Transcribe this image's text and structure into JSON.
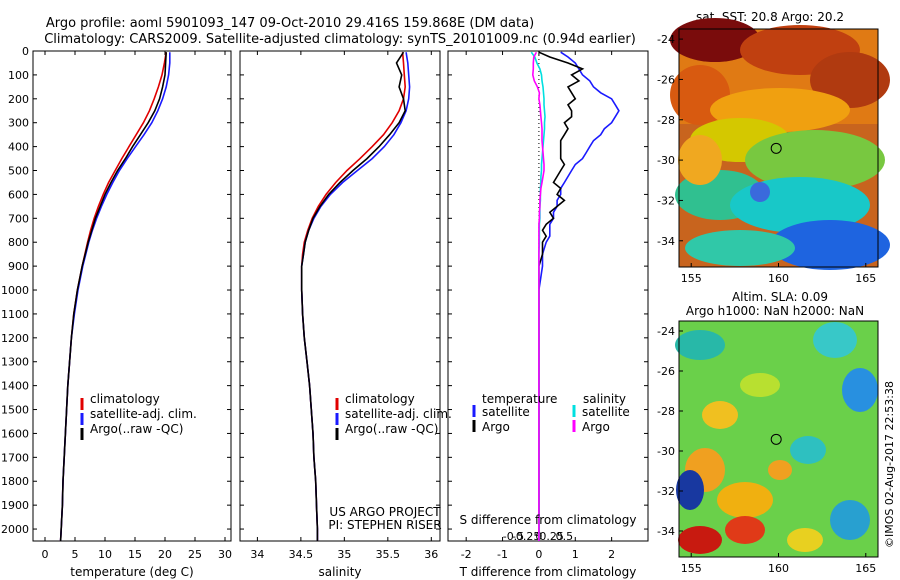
{
  "figure": {
    "title_line1": "Argo profile: aoml 5901093_147 09-Oct-2010 29.416S 159.868E (DM data)",
    "title_line2": "Climatology: CARS2009. Satellite-adjusted climatology: synTS_20101009.nc (0.94d earlier)",
    "project_line1": "US ARGO PROJECT",
    "project_line2": "PI: STEPHEN RISER",
    "stamp": "©IMOS 02-Aug-2017 22:53:38"
  },
  "colors": {
    "climatology": "#e00000",
    "satellite": "#1a1aff",
    "argo": "#000000",
    "argo_salinity_diff": "#ff00ff",
    "satellite_salinity_diff": "#00e0e0"
  },
  "chart_data": [
    {
      "type": "line",
      "name": "temperature",
      "xlabel": "temperature (deg C)",
      "ylim": [
        2050,
        0
      ],
      "xlim": [
        -2,
        31
      ],
      "xticks": [
        "0",
        "5",
        "10",
        "15",
        "20",
        "25",
        "30"
      ],
      "yticks": [
        "0",
        "100",
        "200",
        "300",
        "400",
        "500",
        "600",
        "700",
        "800",
        "900",
        "1000",
        "1100",
        "1200",
        "1300",
        "1400",
        "1500",
        "1600",
        "1700",
        "1800",
        "1900",
        "2000"
      ],
      "legend": [
        "climatology",
        "satellite-adj. clim.",
        "Argo(..raw -QC)"
      ],
      "depth": [
        5,
        50,
        100,
        150,
        200,
        250,
        300,
        350,
        400,
        450,
        500,
        550,
        600,
        650,
        700,
        750,
        800,
        900,
        1000,
        1100,
        1200,
        1300,
        1400,
        1500,
        1600,
        1700,
        1800,
        1900,
        2000,
        2050
      ],
      "series": [
        {
          "name": "climatology",
          "values": [
            20.2,
            19.9,
            19.5,
            18.9,
            18.2,
            17.4,
            16.4,
            15.2,
            14.0,
            12.8,
            11.7,
            10.6,
            9.7,
            8.9,
            8.2,
            7.6,
            7.1,
            6.2,
            5.4,
            4.8,
            4.4,
            4.1,
            3.8,
            3.6,
            3.4,
            3.2,
            3.0,
            2.9,
            2.7,
            2.6
          ]
        },
        {
          "name": "satellite-adj. clim.",
          "values": [
            20.8,
            20.8,
            20.6,
            20.2,
            19.6,
            18.8,
            17.8,
            16.5,
            15.1,
            13.7,
            12.4,
            11.3,
            10.3,
            9.4,
            8.6,
            7.9,
            7.3,
            6.3,
            5.5,
            4.9,
            4.4,
            4.1,
            3.8,
            3.6,
            3.4,
            3.2,
            3.0,
            2.9,
            2.7,
            2.6
          ]
        },
        {
          "name": "Argo(..raw -QC)",
          "values": [
            20.2,
            20.1,
            20.0,
            19.6,
            19.1,
            18.3,
            17.2,
            15.9,
            14.6,
            13.4,
            12.1,
            11.0,
            10.0,
            9.2,
            8.4,
            7.8,
            7.2,
            6.2,
            5.4,
            4.8,
            4.4,
            4.1,
            3.8,
            3.6,
            3.4,
            3.2,
            3.0,
            2.9,
            2.7,
            2.6
          ]
        }
      ]
    },
    {
      "type": "line",
      "name": "salinity",
      "xlabel": "salinity",
      "ylim": [
        2050,
        0
      ],
      "xlim": [
        33.8,
        36.1
      ],
      "xticks": [
        "34",
        "34.5",
        "35",
        "35.5",
        "36"
      ],
      "legend": [
        "climatology",
        "satellite-adj. clim.",
        "Argo(..raw -QC)"
      ],
      "depth": [
        5,
        50,
        100,
        150,
        200,
        250,
        300,
        350,
        400,
        450,
        500,
        550,
        600,
        650,
        700,
        750,
        800,
        850,
        900,
        950,
        1000,
        1100,
        1200,
        1300,
        1400,
        1500,
        1600,
        1700,
        1800,
        1900,
        2000,
        2050
      ],
      "series": [
        {
          "name": "climatology",
          "values": [
            35.67,
            35.68,
            35.69,
            35.7,
            35.68,
            35.63,
            35.55,
            35.45,
            35.32,
            35.18,
            35.03,
            34.9,
            34.79,
            34.7,
            34.63,
            34.58,
            34.54,
            34.52,
            34.51,
            34.51,
            34.51,
            34.52,
            34.54,
            34.57,
            34.6,
            34.62,
            34.64,
            34.65,
            34.67,
            34.68,
            34.69,
            34.69
          ]
        },
        {
          "name": "satellite-adj. clim.",
          "values": [
            35.71,
            35.73,
            35.74,
            35.75,
            35.74,
            35.71,
            35.65,
            35.57,
            35.46,
            35.32,
            35.15,
            34.98,
            34.84,
            34.73,
            34.65,
            34.59,
            34.55,
            34.53,
            34.51,
            34.51,
            34.51,
            34.52,
            34.54,
            34.57,
            34.6,
            34.62,
            34.64,
            34.65,
            34.67,
            34.68,
            34.69,
            34.69
          ]
        },
        {
          "name": "Argo(..raw -QC)",
          "values": [
            35.68,
            35.6,
            35.66,
            35.63,
            35.68,
            35.7,
            35.63,
            35.52,
            35.4,
            35.26,
            35.1,
            34.95,
            34.82,
            34.72,
            34.64,
            34.59,
            34.55,
            34.53,
            34.51,
            34.51,
            34.51,
            34.52,
            34.54,
            34.57,
            34.6,
            34.62,
            34.64,
            34.65,
            34.67,
            34.68,
            34.69,
            34.69
          ]
        }
      ]
    },
    {
      "type": "line",
      "name": "difference from climatology",
      "xlabel_top": "S difference from climatology",
      "xlabel": "T difference from climatology",
      "ylim": [
        2050,
        0
      ],
      "xlim": [
        -2.5,
        3
      ],
      "xticks_T": [
        "-2",
        "-1",
        "0",
        "1",
        "2"
      ],
      "xticks_S": [
        "-0.5",
        "-0.25",
        "0",
        "0.25",
        "0.5"
      ],
      "legend_titles": [
        "temperature",
        "salinity"
      ],
      "legend": [
        "satellite",
        "Argo",
        "satellite",
        "Argo"
      ],
      "depth": [
        5,
        25,
        50,
        75,
        100,
        125,
        150,
        175,
        200,
        225,
        250,
        275,
        300,
        325,
        350,
        375,
        400,
        425,
        450,
        475,
        500,
        525,
        550,
        575,
        600,
        625,
        650,
        675,
        700,
        725,
        750,
        775,
        800,
        850,
        900,
        950,
        1000,
        1200,
        1400,
        1600,
        1800,
        2000,
        2050
      ],
      "series": [
        {
          "name": "T satellite",
          "values": [
            0.6,
            0.8,
            1.0,
            1.1,
            1.2,
            1.4,
            1.5,
            1.7,
            2.0,
            2.1,
            2.2,
            2.1,
            2.0,
            1.8,
            1.7,
            1.5,
            1.4,
            1.3,
            1.2,
            1.0,
            0.9,
            0.8,
            0.7,
            0.6,
            0.6,
            0.5,
            0.5,
            0.4,
            0.4,
            0.3,
            0.3,
            0.3,
            0.2,
            0.1,
            0.1,
            0.05,
            0.0,
            0.0,
            0.0,
            0.0,
            0.0,
            0.0,
            0.0
          ]
        },
        {
          "name": "T Argo",
          "values": [
            0.0,
            0.3,
            0.8,
            1.2,
            0.9,
            1.1,
            0.8,
            0.9,
            1.0,
            0.8,
            0.9,
            0.9,
            0.7,
            0.8,
            0.7,
            0.6,
            0.6,
            0.6,
            0.6,
            0.7,
            0.6,
            0.5,
            0.4,
            0.6,
            0.5,
            0.7,
            0.5,
            0.3,
            0.4,
            0.2,
            0.1,
            0.2,
            0.1,
            0.1,
            0.0,
            0.0,
            0.0,
            0.0,
            0.0,
            0.0,
            0.0,
            0.0,
            0.0
          ]
        },
        {
          "name": "S satellite",
          "values": [
            -0.15,
            -0.08,
            -0.04,
            0.02,
            0.05,
            0.06,
            0.08,
            0.09,
            0.1,
            0.1,
            0.11,
            0.12,
            0.11,
            0.11,
            0.1,
            0.09,
            0.08,
            0.07,
            0.06,
            0.05,
            0.05,
            0.04,
            0.04,
            0.03,
            0.03,
            0.03,
            0.02,
            0.02,
            0.02,
            0.01,
            0.01,
            0.01,
            0.01,
            0.0,
            0.0,
            0.0,
            0.0,
            0.0,
            0.0,
            0.0,
            0.0,
            0.0,
            0.0
          ]
        },
        {
          "name": "S Argo",
          "values": [
            -0.05,
            -0.1,
            -0.11,
            -0.11,
            -0.12,
            -0.09,
            -0.03,
            0.01,
            0.0,
            0.02,
            0.03,
            0.04,
            0.05,
            0.06,
            0.06,
            0.06,
            0.07,
            0.08,
            0.09,
            0.1,
            0.1,
            0.08,
            0.06,
            0.04,
            0.03,
            0.02,
            0.02,
            0.01,
            0.01,
            0.0,
            0.0,
            0.0,
            0.0,
            0.0,
            0.0,
            0.0,
            0.0,
            0.0,
            0.0,
            0.0,
            0.0,
            0.0,
            0.0
          ]
        }
      ]
    },
    {
      "type": "heatmap",
      "name": "sst map",
      "title": "sat. SST: 20.8 Argo: 20.2",
      "xlim": [
        154.3,
        165.7
      ],
      "ylim": [
        -35.3,
        -23.5
      ],
      "xticks": [
        "155",
        "160",
        "165"
      ],
      "yticks": [
        "-24",
        "-26",
        "-28",
        "-30",
        "-32",
        "-34"
      ],
      "marker": {
        "lon": 159.868,
        "lat": -29.416
      }
    },
    {
      "type": "heatmap",
      "name": "sla map",
      "title_line1": "Altim. SLA: 0.09",
      "title_line2": "Argo h1000: NaN h2000: NaN",
      "xlim": [
        154.3,
        165.7
      ],
      "ylim": [
        -35.3,
        -23.5
      ],
      "xticks": [
        "155",
        "160",
        "165"
      ],
      "yticks": [
        "-24",
        "-26",
        "-28",
        "-30",
        "-32",
        "-34"
      ],
      "marker": {
        "lon": 159.868,
        "lat": -29.416
      }
    }
  ]
}
